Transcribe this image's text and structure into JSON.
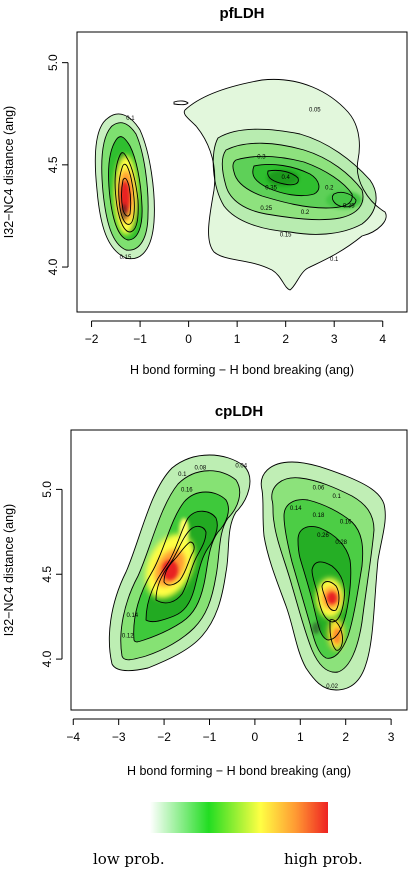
{
  "chart_data": [
    {
      "type": "contour",
      "title": "pfLDH",
      "xlabel": "H bond forming − H bond breaking (ang)",
      "ylabel": "I32−NC4 distance (ang)",
      "xlim": [
        -2.3,
        4.5
      ],
      "ylim": [
        3.78,
        5.15
      ],
      "xticks": [
        "−2",
        "−1",
        "0",
        "1",
        "2",
        "3",
        "4"
      ],
      "xtick_values": [
        -2,
        -1,
        0,
        1,
        2,
        3,
        4
      ],
      "yticks": [
        "4.0",
        "4.5",
        "5.0"
      ],
      "ytick_values": [
        4.0,
        4.5,
        5.0
      ],
      "contour_labels": [
        {
          "text": "0.05",
          "x": 2.6,
          "y": 4.77
        },
        {
          "text": "0.1",
          "x": -1.2,
          "y": 4.73
        },
        {
          "text": "0.3",
          "x": 1.5,
          "y": 4.54
        },
        {
          "text": "0.4",
          "x": 2.0,
          "y": 4.44
        },
        {
          "text": "0.35",
          "x": 1.7,
          "y": 4.39
        },
        {
          "text": "0.2",
          "x": 2.9,
          "y": 4.39
        },
        {
          "text": "0.25",
          "x": 1.6,
          "y": 4.29
        },
        {
          "text": "0.35",
          "x": 3.3,
          "y": 4.3
        },
        {
          "text": "0.2",
          "x": 2.4,
          "y": 4.27
        },
        {
          "text": "0.15",
          "x": 2.0,
          "y": 4.16
        },
        {
          "text": "0.1",
          "x": 3.0,
          "y": 4.04
        },
        {
          "text": "0.15",
          "x": -1.3,
          "y": 4.05
        }
      ],
      "peaks": [
        {
          "x": -1.3,
          "y": 4.32,
          "level": "high"
        },
        {
          "x": 1.9,
          "y": 4.42,
          "level": "medium"
        }
      ]
    },
    {
      "type": "contour",
      "title": "cpLDH",
      "xlabel": "H bond forming − H bond breaking (ang)",
      "ylabel": "I32−NC4 distance (ang)",
      "xlim": [
        -4.05,
        3.35
      ],
      "ylim": [
        3.7,
        5.35
      ],
      "xticks": [
        "−4",
        "−3",
        "−2",
        "−1",
        "0",
        "1",
        "2",
        "3"
      ],
      "xtick_values": [
        -4,
        -3,
        -2,
        -1,
        0,
        1,
        2,
        3
      ],
      "yticks": [
        "4.0",
        "4.5",
        "5.0"
      ],
      "ytick_values": [
        4.0,
        4.5,
        5.0
      ],
      "contour_labels": [
        {
          "text": "0.04",
          "x": -0.3,
          "y": 5.14
        },
        {
          "text": "0.08",
          "x": -1.2,
          "y": 5.13
        },
        {
          "text": "0.1",
          "x": -1.6,
          "y": 5.09
        },
        {
          "text": "0.06",
          "x": 1.4,
          "y": 5.01
        },
        {
          "text": "0.16",
          "x": -1.5,
          "y": 5.0
        },
        {
          "text": "0.1",
          "x": 1.8,
          "y": 4.96
        },
        {
          "text": "0.14",
          "x": 0.9,
          "y": 4.89
        },
        {
          "text": "0.18",
          "x": 1.4,
          "y": 4.85
        },
        {
          "text": "0.16",
          "x": 2.0,
          "y": 4.81
        },
        {
          "text": "0.26",
          "x": 1.5,
          "y": 4.73
        },
        {
          "text": "0.28",
          "x": 1.9,
          "y": 4.69
        },
        {
          "text": "0.14",
          "x": -2.7,
          "y": 4.26
        },
        {
          "text": "0.12",
          "x": -2.8,
          "y": 4.14
        },
        {
          "text": "0.02",
          "x": 1.7,
          "y": 3.84
        }
      ],
      "peaks": [
        {
          "x": -1.8,
          "y": 4.56,
          "level": "high"
        },
        {
          "x": 1.6,
          "y": 4.37,
          "level": "high"
        },
        {
          "x": 1.8,
          "y": 4.12,
          "level": "medium"
        }
      ]
    }
  ],
  "legend": {
    "low_label": "low prob.",
    "high_label": "high prob.",
    "colors": [
      "#ffffff",
      "#33dd33",
      "#ffff33",
      "#ff9933",
      "#ee2222"
    ]
  }
}
